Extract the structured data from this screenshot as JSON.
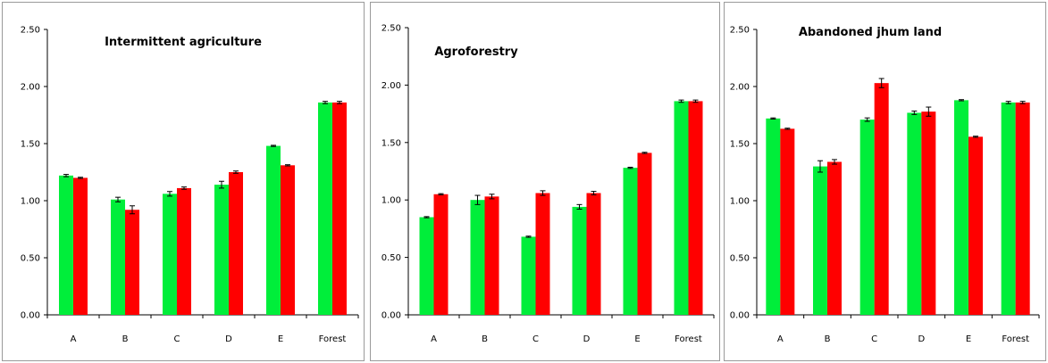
{
  "colors": {
    "series1": "#00ee3a",
    "series2": "#ff0000",
    "errorbar": "#000000",
    "axis": "#000000"
  },
  "chart_data": [
    {
      "type": "bar",
      "title": "Intermittent agriculture",
      "categories": [
        "A",
        "B",
        "C",
        "D",
        "E",
        "Forest"
      ],
      "ylim": [
        0,
        2.5
      ],
      "yticks": [
        "0.00",
        "0.50",
        "1.00",
        "1.50",
        "2.00",
        "2.50"
      ],
      "grid": false,
      "series": [
        {
          "color": "#00ee3a",
          "values": [
            1.22,
            1.01,
            1.06,
            1.14,
            1.48,
            1.86
          ],
          "errors": [
            0.01,
            0.02,
            0.02,
            0.03,
            0.005,
            0.01
          ]
        },
        {
          "color": "#ff0000",
          "values": [
            1.2,
            0.92,
            1.11,
            1.25,
            1.31,
            1.86
          ],
          "errors": [
            0.005,
            0.035,
            0.01,
            0.01,
            0.005,
            0.01
          ]
        }
      ]
    },
    {
      "type": "bar",
      "title": "Agroforestry",
      "categories": [
        "A",
        "B",
        "C",
        "D",
        "E",
        "Forest"
      ],
      "ylim": [
        0,
        2.5
      ],
      "yticks": [
        "0.00",
        "0.50",
        "1.00",
        "1.50",
        "2.00",
        "2.50"
      ],
      "grid": false,
      "series": [
        {
          "color": "#00ee3a",
          "values": [
            0.85,
            1.0,
            0.68,
            0.94,
            1.28,
            1.86
          ],
          "errors": [
            0.005,
            0.04,
            0.005,
            0.02,
            0.005,
            0.01
          ]
        },
        {
          "color": "#ff0000",
          "values": [
            1.05,
            1.03,
            1.06,
            1.06,
            1.41,
            1.86
          ],
          "errors": [
            0.005,
            0.02,
            0.02,
            0.015,
            0.005,
            0.01
          ]
        }
      ]
    },
    {
      "type": "bar",
      "title": "Abandoned jhum land",
      "categories": [
        "A",
        "B",
        "C",
        "D",
        "E",
        "Forest"
      ],
      "ylim": [
        0,
        2.5
      ],
      "yticks": [
        "0.00",
        "0.50",
        "1.00",
        "1.50",
        "2.00",
        "2.50"
      ],
      "grid": false,
      "series": [
        {
          "color": "#00ee3a",
          "values": [
            1.72,
            1.3,
            1.71,
            1.77,
            1.88,
            1.86
          ],
          "errors": [
            0.005,
            0.05,
            0.015,
            0.015,
            0.005,
            0.01
          ]
        },
        {
          "color": "#ff0000",
          "values": [
            1.63,
            1.34,
            2.03,
            1.78,
            1.56,
            1.86
          ],
          "errors": [
            0.005,
            0.02,
            0.04,
            0.04,
            0.005,
            0.01
          ]
        }
      ]
    }
  ]
}
